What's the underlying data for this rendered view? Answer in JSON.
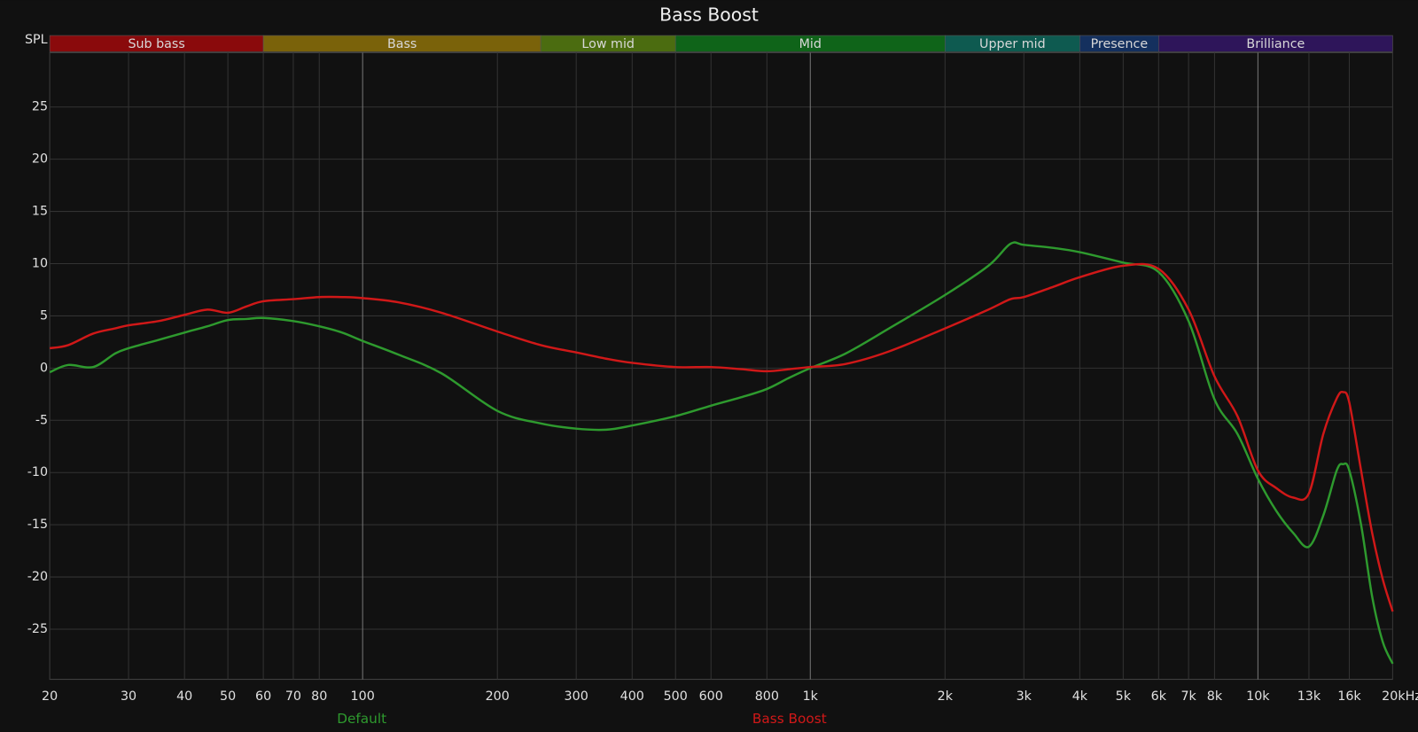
{
  "chart_data": {
    "type": "line",
    "title": "Bass Boost",
    "y_axis_label": "SPL",
    "x_scale": "log",
    "xlim": [
      20,
      20000
    ],
    "ylim": [
      -29.8,
      30.2
    ],
    "grid": true,
    "xticks": [
      20,
      30,
      40,
      50,
      60,
      70,
      80,
      100,
      200,
      300,
      400,
      500,
      600,
      800,
      {
        "value": 1000,
        "label": "1k"
      },
      {
        "value": 2000,
        "label": "2k"
      },
      {
        "value": 3000,
        "label": "3k"
      },
      {
        "value": 4000,
        "label": "4k"
      },
      {
        "value": 5000,
        "label": "5k"
      },
      {
        "value": 6000,
        "label": "6k"
      },
      {
        "value": 7000,
        "label": "7k"
      },
      {
        "value": 8000,
        "label": "8k"
      },
      {
        "value": 10000,
        "label": "10k"
      },
      {
        "value": 13000,
        "label": "13k"
      },
      {
        "value": 16000,
        "label": "16k"
      },
      {
        "value": 20000,
        "label": "20kHz"
      }
    ],
    "yticks": [
      -25,
      -20,
      -15,
      -10,
      -5,
      0,
      5,
      10,
      15,
      20,
      25
    ],
    "bands": [
      {
        "name": "Sub bass",
        "from": 20,
        "to": 60,
        "color": "#8a0a0c"
      },
      {
        "name": "Bass",
        "from": 60,
        "to": 250,
        "color": "#7a620a"
      },
      {
        "name": "Low mid",
        "from": 250,
        "to": 500,
        "color": "#4b6c10"
      },
      {
        "name": "Mid",
        "from": 500,
        "to": 2000,
        "color": "#0f6419"
      },
      {
        "name": "Upper mid",
        "from": 2000,
        "to": 4000,
        "color": "#0e5a50"
      },
      {
        "name": "Presence",
        "from": 4000,
        "to": 6000,
        "color": "#14305e"
      },
      {
        "name": "Brilliance",
        "from": 6000,
        "to": 20000,
        "color": "#2e155a"
      }
    ],
    "x": [
      20,
      22,
      25,
      28,
      30,
      35,
      40,
      45,
      50,
      55,
      60,
      70,
      80,
      90,
      100,
      120,
      150,
      200,
      250,
      300,
      350,
      400,
      500,
      600,
      700,
      800,
      900,
      1000,
      1200,
      1500,
      2000,
      2500,
      2800,
      3000,
      3500,
      4000,
      5000,
      6000,
      7000,
      8000,
      9000,
      10000,
      11000,
      12000,
      13000,
      14000,
      15000,
      15500,
      16000,
      17000,
      18000,
      19000,
      20000
    ],
    "series": [
      {
        "name": "Default",
        "color": "#2e9a2e",
        "values": [
          -0.4,
          0.3,
          0.1,
          1.4,
          1.9,
          2.7,
          3.4,
          4.0,
          4.6,
          4.7,
          4.8,
          4.5,
          4.0,
          3.4,
          2.6,
          1.3,
          -0.5,
          -4.1,
          -5.3,
          -5.8,
          -5.9,
          -5.5,
          -4.6,
          -3.6,
          -2.8,
          -2.0,
          -0.9,
          0.0,
          1.4,
          3.8,
          7.0,
          9.8,
          11.9,
          11.8,
          11.5,
          11.1,
          10.1,
          9.2,
          4.5,
          -3.0,
          -6.3,
          -10.6,
          -13.7,
          -15.8,
          -17.1,
          -14.1,
          -9.8,
          -9.2,
          -9.8,
          -15.0,
          -21.9,
          -26.2,
          -28.3
        ]
      },
      {
        "name": "Bass Boost",
        "color": "#d01818",
        "values": [
          1.9,
          2.2,
          3.3,
          3.8,
          4.1,
          4.5,
          5.1,
          5.6,
          5.3,
          5.9,
          6.4,
          6.6,
          6.8,
          6.8,
          6.7,
          6.3,
          5.3,
          3.5,
          2.2,
          1.5,
          0.9,
          0.5,
          0.1,
          0.1,
          -0.1,
          -0.3,
          -0.1,
          0.1,
          0.4,
          1.6,
          3.8,
          5.6,
          6.6,
          6.8,
          7.8,
          8.7,
          9.8,
          9.5,
          5.6,
          -0.8,
          -4.6,
          -9.8,
          -11.5,
          -12.4,
          -12.0,
          -6.3,
          -2.9,
          -2.3,
          -3.3,
          -9.8,
          -15.8,
          -20.2,
          -23.3
        ]
      }
    ]
  }
}
